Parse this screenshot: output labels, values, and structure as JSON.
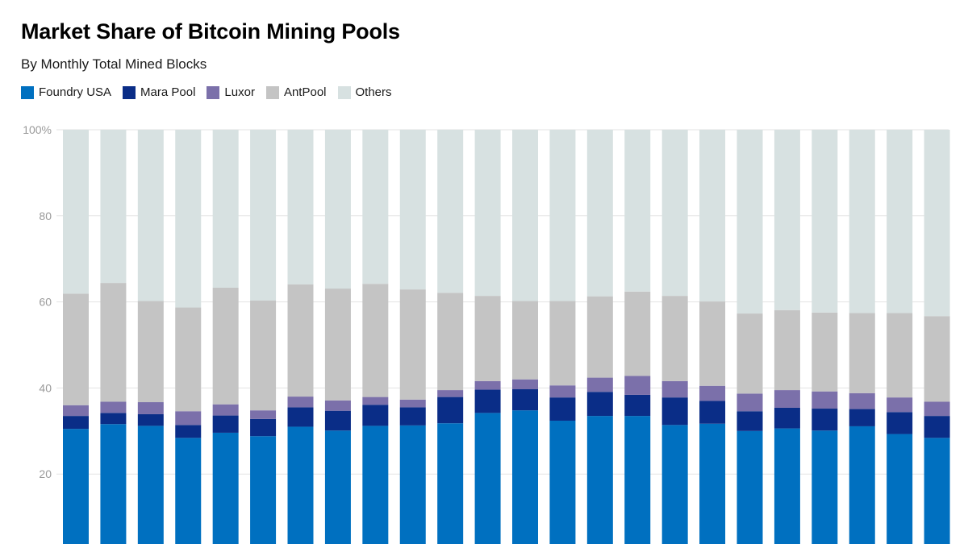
{
  "chart_data": {
    "type": "bar",
    "stacked": true,
    "title": "Market Share of Bitcoin Mining Pools",
    "subtitle": "By Monthly Total Mined Blocks",
    "xlabel": "",
    "ylabel": "",
    "ylim": [
      0,
      100
    ],
    "yticks": [
      {
        "value": 20,
        "label": "20"
      },
      {
        "value": 40,
        "label": "40"
      },
      {
        "value": 60,
        "label": "60"
      },
      {
        "value": 80,
        "label": "80"
      },
      {
        "value": 100,
        "label": "100%"
      }
    ],
    "grid": true,
    "legend_position": "top-left",
    "categories": [
      "",
      "",
      "",
      "",
      "",
      "",
      "",
      "",
      "",
      "",
      "",
      "",
      "",
      "",
      "",
      "",
      "",
      "",
      "",
      "",
      "",
      "",
      "",
      ""
    ],
    "series": [
      {
        "name": "Foundry USA",
        "color": "#0070c0",
        "values": [
          30.5,
          31.6,
          31.2,
          28.4,
          29.6,
          28.8,
          31.0,
          30.1,
          31.2,
          31.3,
          31.8,
          34.2,
          34.8,
          32.4,
          33.5,
          33.5,
          31.4,
          31.7,
          30.0,
          30.6,
          30.1,
          31.1,
          29.3,
          28.4
        ]
      },
      {
        "name": "Mara Pool",
        "color": "#0a2d87",
        "values": [
          3.0,
          2.6,
          2.7,
          3.0,
          4.0,
          4.0,
          4.5,
          4.6,
          4.9,
          4.2,
          6.1,
          5.4,
          4.9,
          5.4,
          5.6,
          4.9,
          6.4,
          5.3,
          4.6,
          4.8,
          5.1,
          4.0,
          5.1,
          5.1
        ]
      },
      {
        "name": "Luxor",
        "color": "#7b70aa",
        "values": [
          2.5,
          2.6,
          2.8,
          3.2,
          2.6,
          2.0,
          2.5,
          2.4,
          1.8,
          1.8,
          1.6,
          2.0,
          2.3,
          2.8,
          3.3,
          4.4,
          3.8,
          3.5,
          4.1,
          4.1,
          4.0,
          3.7,
          3.4,
          3.3
        ]
      },
      {
        "name": "AntPool",
        "color": "#c4c4c4",
        "values": [
          25.9,
          27.6,
          23.5,
          24.1,
          27.1,
          25.5,
          26.1,
          26.0,
          26.3,
          25.6,
          22.6,
          19.8,
          18.2,
          19.6,
          18.9,
          19.6,
          19.8,
          19.6,
          18.6,
          18.6,
          18.3,
          18.6,
          19.6,
          19.9
        ]
      },
      {
        "name": "Others",
        "color": "#d7e1e1",
        "values": [
          38.1,
          35.6,
          39.8,
          41.3,
          36.7,
          39.7,
          35.9,
          36.9,
          35.8,
          37.1,
          37.9,
          38.6,
          39.8,
          39.8,
          38.7,
          37.6,
          38.6,
          39.9,
          42.7,
          41.9,
          42.5,
          42.6,
          42.6,
          43.3
        ]
      }
    ]
  }
}
